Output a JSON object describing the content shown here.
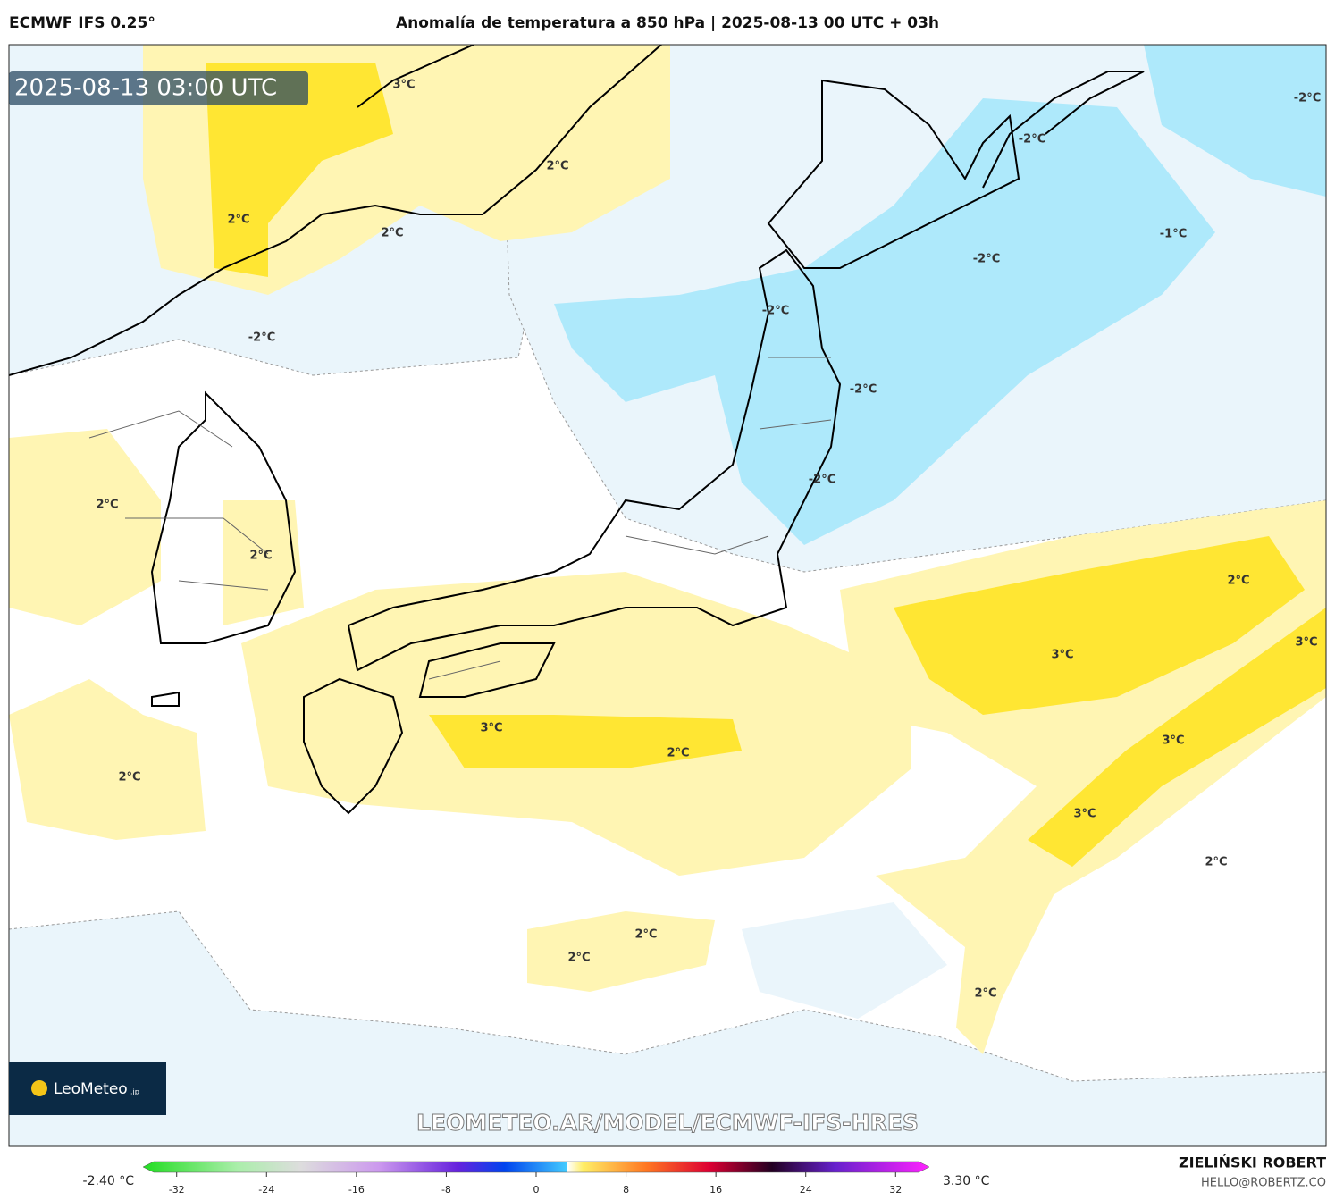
{
  "header": {
    "model": "ECMWF IFS 0.25°",
    "title": "Anomalía de temperatura a 850 hPa | 2025-08-13 00 UTC + 03h"
  },
  "map": {
    "timestamp": "2025-08-13 03:00 UTC",
    "contour_labels": [
      "3°C",
      "2°C",
      "2°C",
      "2°C",
      "-2°C",
      "2°C",
      "2°C",
      "-2°C",
      "-1°C",
      "-2°C",
      "-2°C",
      "-2°C",
      "-2°C",
      "-2°C",
      "2°C",
      "3°C",
      "3°C",
      "3°C",
      "3°C",
      "2°C",
      "3°C",
      "2°C",
      "2°C",
      "2°C",
      "2°C",
      "2°C"
    ],
    "logo": {
      "name": "LeoMeteo",
      "suffix": ".jp"
    },
    "watermark": "LEOMETEO.AR/MODEL/ECMWF-IFS-HRES"
  },
  "colorbar": {
    "min_label": "-2.40 °C",
    "max_label": "3.30 °C",
    "range": [
      -35,
      35
    ],
    "ticks": [
      -32,
      -24,
      -16,
      -8,
      0,
      8,
      16,
      24,
      32
    ]
  },
  "footer": {
    "author": "ZIELIŃSKI ROBERT",
    "email": "HELLO@ROBERTZ.CO"
  }
}
